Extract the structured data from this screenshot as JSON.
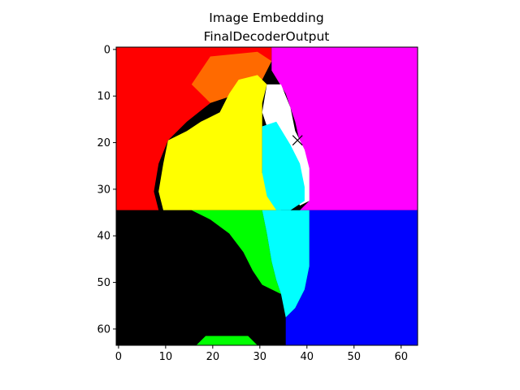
{
  "chart_data": {
    "type": "heatmap",
    "title": "Image Embedding",
    "subtitle": "FinalDecoderOutput",
    "grid_size": [
      64,
      64
    ],
    "xlim": [
      -0.5,
      63.5
    ],
    "ylim": [
      63.5,
      -0.5
    ],
    "xticks": [
      0,
      10,
      20,
      30,
      40,
      50,
      60
    ],
    "yticks": [
      0,
      10,
      20,
      30,
      40,
      50,
      60
    ],
    "grid": false,
    "marker": {
      "symbol": "x",
      "x": 38,
      "y": 19.5
    },
    "colors": {
      "red": "#ff0000",
      "orange": "#ff6a00",
      "yellow": "#ffff00",
      "magenta": "#ff00ff",
      "white": "#ffffff",
      "cyan": "#00ffff",
      "black": "#000000",
      "green": "#00ff00",
      "blue": "#0000ff"
    },
    "regions": [
      {
        "name": "red",
        "color_key": "red",
        "polygon": [
          [
            0,
            0
          ],
          [
            33,
            0
          ],
          [
            33,
            3
          ],
          [
            30,
            5
          ],
          [
            25,
            7
          ],
          [
            20,
            12
          ],
          [
            15,
            16
          ],
          [
            11,
            20
          ],
          [
            9,
            25
          ],
          [
            8,
            31
          ],
          [
            9,
            35
          ],
          [
            0,
            35
          ]
        ]
      },
      {
        "name": "orange",
        "color_key": "orange",
        "polygon": [
          [
            20,
            2
          ],
          [
            30,
            1
          ],
          [
            33,
            3
          ],
          [
            31,
            7
          ],
          [
            26,
            10
          ],
          [
            20,
            12
          ],
          [
            16,
            8
          ]
        ]
      },
      {
        "name": "magenta",
        "color_key": "magenta",
        "polygon": [
          [
            33,
            0
          ],
          [
            64,
            0
          ],
          [
            64,
            35
          ],
          [
            39,
            35
          ],
          [
            41,
            33
          ],
          [
            40,
            25
          ],
          [
            38,
            16
          ],
          [
            36,
            10
          ],
          [
            33,
            5
          ]
        ]
      },
      {
        "name": "yellow",
        "color_key": "yellow",
        "polygon": [
          [
            26,
            7
          ],
          [
            30,
            6
          ],
          [
            32,
            8
          ],
          [
            31,
            12
          ],
          [
            31,
            20
          ],
          [
            31,
            27
          ],
          [
            33,
            32
          ],
          [
            35,
            35
          ],
          [
            10,
            35
          ],
          [
            9,
            31
          ],
          [
            10,
            25
          ],
          [
            11,
            20
          ],
          [
            15,
            18
          ],
          [
            18,
            16
          ],
          [
            22,
            14
          ],
          [
            24,
            10
          ]
        ]
      },
      {
        "name": "white",
        "color_key": "white",
        "polygon": [
          [
            32,
            8
          ],
          [
            35,
            8
          ],
          [
            37,
            13
          ],
          [
            38,
            18
          ],
          [
            40,
            22
          ],
          [
            41,
            26
          ],
          [
            41,
            33
          ],
          [
            39,
            34
          ],
          [
            37,
            30
          ],
          [
            35,
            25
          ],
          [
            33,
            20
          ],
          [
            31,
            14
          ]
        ]
      },
      {
        "name": "cyan-upper",
        "color_key": "cyan",
        "polygon": [
          [
            31,
            17
          ],
          [
            34,
            16
          ],
          [
            37,
            21
          ],
          [
            39,
            25
          ],
          [
            40,
            30
          ],
          [
            40,
            33
          ],
          [
            37,
            35
          ],
          [
            34,
            35
          ],
          [
            32,
            32
          ],
          [
            31,
            27
          ]
        ]
      },
      {
        "name": "black",
        "color_key": "black",
        "polygon": [
          [
            0,
            35
          ],
          [
            16,
            35
          ],
          [
            20,
            37
          ],
          [
            24,
            40
          ],
          [
            27,
            44
          ],
          [
            29,
            48
          ],
          [
            31,
            51
          ],
          [
            34,
            53
          ],
          [
            36,
            56
          ],
          [
            36,
            60
          ],
          [
            37,
            64
          ],
          [
            0,
            64
          ]
        ]
      },
      {
        "name": "green",
        "color_key": "green",
        "polygon": [
          [
            16,
            35
          ],
          [
            31,
            35
          ],
          [
            32,
            40
          ],
          [
            33,
            46
          ],
          [
            34,
            50
          ],
          [
            35,
            53
          ],
          [
            31,
            51
          ],
          [
            29,
            48
          ],
          [
            27,
            44
          ],
          [
            24,
            40
          ],
          [
            20,
            37
          ]
        ]
      },
      {
        "name": "blue",
        "color_key": "blue",
        "polygon": [
          [
            41,
            35
          ],
          [
            64,
            35
          ],
          [
            64,
            64
          ],
          [
            36,
            64
          ],
          [
            36,
            58
          ],
          [
            38,
            56
          ],
          [
            40,
            52
          ],
          [
            41,
            47
          ],
          [
            41,
            40
          ]
        ]
      },
      {
        "name": "cyan-lower",
        "color_key": "cyan",
        "polygon": [
          [
            31,
            35
          ],
          [
            41,
            35
          ],
          [
            41,
            40
          ],
          [
            41,
            47
          ],
          [
            40,
            52
          ],
          [
            38,
            56
          ],
          [
            36,
            58
          ],
          [
            35,
            53
          ],
          [
            34,
            50
          ],
          [
            33,
            46
          ],
          [
            32,
            40
          ]
        ]
      },
      {
        "name": "green-bottom-strip",
        "color_key": "green",
        "polygon": [
          [
            19,
            62
          ],
          [
            28,
            62
          ],
          [
            30,
            64
          ],
          [
            17,
            64
          ]
        ]
      }
    ]
  }
}
